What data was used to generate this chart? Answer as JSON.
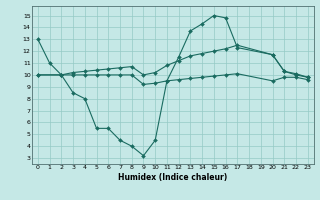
{
  "xlabel": "Humidex (Indice chaleur)",
  "bg_color": "#c5e8e6",
  "grid_color": "#95cac6",
  "line_color": "#1a6b60",
  "xlim": [
    -0.5,
    23.5
  ],
  "ylim": [
    2.5,
    15.8
  ],
  "yticks": [
    3,
    4,
    5,
    6,
    7,
    8,
    9,
    10,
    11,
    12,
    13,
    14,
    15
  ],
  "xticks": [
    0,
    1,
    2,
    3,
    4,
    5,
    6,
    7,
    8,
    9,
    10,
    11,
    12,
    13,
    14,
    15,
    16,
    17,
    18,
    19,
    20,
    21,
    22,
    23
  ],
  "line1_x": [
    0,
    1,
    2,
    3,
    4,
    5,
    6,
    7,
    8,
    9,
    10,
    11,
    12,
    13,
    14,
    15,
    16,
    17,
    20,
    21,
    22,
    23
  ],
  "line1_y": [
    13.0,
    11.0,
    10.0,
    8.5,
    8.0,
    5.5,
    5.5,
    4.5,
    4.0,
    3.2,
    4.5,
    9.5,
    11.5,
    13.7,
    14.3,
    15.0,
    14.8,
    12.3,
    11.7,
    10.3,
    10.0,
    9.8
  ],
  "line2_x": [
    0,
    2,
    3,
    4,
    5,
    6,
    7,
    8,
    9,
    10,
    11,
    12,
    13,
    14,
    15,
    16,
    17,
    20,
    21,
    22,
    23
  ],
  "line2_y": [
    10.0,
    10.0,
    10.2,
    10.3,
    10.4,
    10.5,
    10.6,
    10.7,
    10.0,
    10.2,
    10.8,
    11.2,
    11.6,
    11.8,
    12.0,
    12.2,
    12.5,
    11.7,
    10.3,
    10.1,
    9.8
  ],
  "line3_x": [
    0,
    2,
    3,
    4,
    5,
    6,
    7,
    8,
    9,
    10,
    11,
    12,
    13,
    14,
    15,
    16,
    17,
    20,
    21,
    22,
    23
  ],
  "line3_y": [
    10.0,
    10.0,
    10.0,
    10.0,
    10.0,
    10.0,
    10.0,
    10.0,
    9.2,
    9.3,
    9.5,
    9.6,
    9.7,
    9.8,
    9.9,
    10.0,
    10.1,
    9.5,
    9.8,
    9.8,
    9.6
  ]
}
